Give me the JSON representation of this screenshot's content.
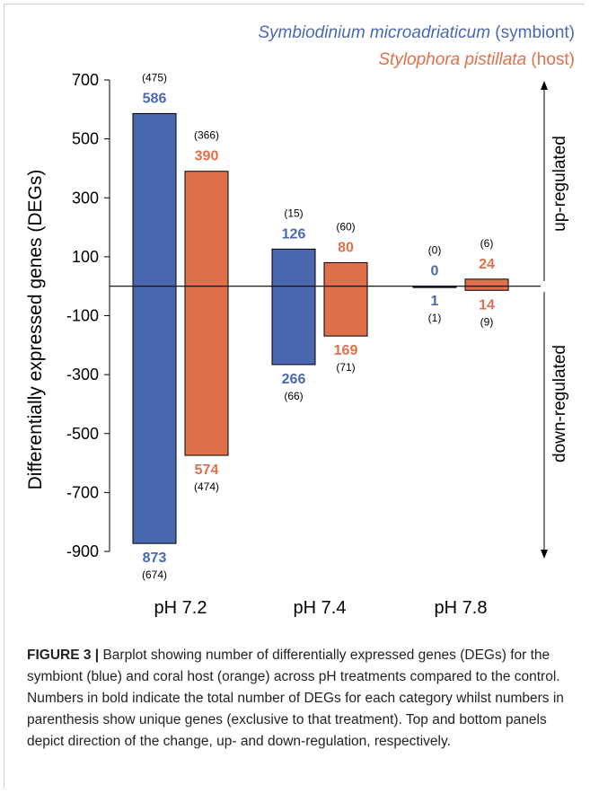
{
  "chart_data": {
    "type": "bar",
    "ylabel": "Differentially expressed genes (DEGs)",
    "yticks": [
      700,
      500,
      300,
      100,
      -100,
      -300,
      -500,
      -700,
      -900
    ],
    "ytick_labels": [
      "700",
      "500",
      "300",
      "100",
      "-100",
      "-300",
      "-500",
      "-700",
      "-900"
    ],
    "ylim": [
      -900,
      700
    ],
    "categories": [
      "pH 7.2",
      "pH 7.4",
      "pH 7.8"
    ],
    "legend": {
      "placement": "top-right",
      "entries": [
        {
          "species": "Symbiodinium microadriaticum",
          "role": "(symbiont)",
          "color": "#4a68b0"
        },
        {
          "species": "Stylophora pistillata",
          "role": "(host)",
          "color": "#e0704a"
        }
      ]
    },
    "series": [
      {
        "name": "Symbiodinium microadriaticum (symbiont)",
        "color": "#4a68b0",
        "up": [
          586,
          126,
          0
        ],
        "down": [
          873,
          266,
          1
        ],
        "up_unique": [
          "(475)",
          "(15)",
          "(0)"
        ],
        "down_unique": [
          "(674)",
          "(66)",
          "(1)"
        ]
      },
      {
        "name": "Stylophora pistillata (host)",
        "color": "#e0704a",
        "up": [
          390,
          80,
          24
        ],
        "down": [
          574,
          169,
          14
        ],
        "up_unique": [
          "(366)",
          "(60)",
          "(6)"
        ],
        "down_unique": [
          "(474)",
          "(71)",
          "(9)"
        ]
      }
    ],
    "side_labels": {
      "up": "up-regulated",
      "down": "down-regulated"
    }
  },
  "caption": {
    "label": "FIGURE 3 |",
    "text": " Barplot showing number of differentially expressed genes (DEGs) for the symbiont (blue) and coral host (orange) across pH treatments compared to the control. Numbers in bold indicate the total number of DEGs for each category whilst numbers in parenthesis show unique genes (exclusive to that treatment). Top and bottom panels depict direction of the change, up- and down-regulation, respectively."
  }
}
